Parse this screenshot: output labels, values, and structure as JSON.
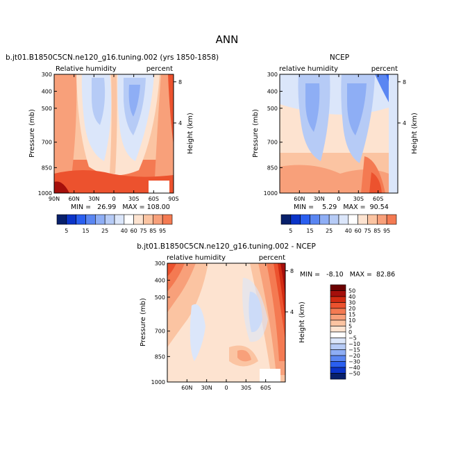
{
  "page": {
    "title": "ANN"
  },
  "colors": {
    "blues": [
      "#08206b",
      "#0b34c8",
      "#2a5ff0",
      "#5a86f2",
      "#8eaef5",
      "#b6cbf6",
      "#dbe6fa"
    ],
    "neutral": "#ffffff",
    "reds": [
      "#fde3d0",
      "#fbc4a2",
      "#f8a07a",
      "#f47a52",
      "#ec522e",
      "#d22b12",
      "#a50f0b",
      "#6b0000"
    ]
  },
  "chart_data": [
    {
      "id": "model",
      "type": "contour",
      "case_title": "b.jt01.B1850C5CN.ne120_g16.tuning.002 (yrs 1850-1858)",
      "variable_label": "Relative humidity",
      "units_label": "percent",
      "ylabel": "Pressure (mb)",
      "y2label": "Height (km)",
      "yticks": [
        "300",
        "400",
        "500",
        "700",
        "850",
        "1000"
      ],
      "yticks_values": [
        300,
        400,
        500,
        700,
        850,
        1000
      ],
      "y2ticks": [
        "8",
        "4"
      ],
      "y2ticks_values": [
        8,
        4
      ],
      "xticks": [
        "90N",
        "60N",
        "30N",
        "0",
        "30S",
        "60S",
        "90S"
      ],
      "xticks_values": [
        90,
        60,
        30,
        0,
        -30,
        -60,
        -90
      ],
      "xlim": [
        90,
        -90
      ],
      "ylim": [
        300,
        1000
      ],
      "stats": "MIN =   26.99   MAX = 108.00",
      "colorbar_levels": [
        "5",
        "15",
        "25",
        "40",
        "60",
        "75",
        "85",
        "95"
      ]
    },
    {
      "id": "obs",
      "type": "contour",
      "case_title": "NCEP",
      "variable_label": "relative humidity",
      "units_label": "percent",
      "ylabel": "Pressure (mb)",
      "y2label": "Height (km)",
      "yticks": [
        "300",
        "400",
        "500",
        "700",
        "850",
        "1000"
      ],
      "yticks_values": [
        300,
        400,
        500,
        700,
        850,
        1000
      ],
      "y2ticks": [
        "8",
        "4"
      ],
      "y2ticks_values": [
        8,
        4
      ],
      "xticks": [
        "60N",
        "30N",
        "0",
        "30S",
        "60S"
      ],
      "xticks_values": [
        60,
        30,
        0,
        -30,
        -60
      ],
      "xlim": [
        90,
        -90
      ],
      "ylim": [
        300,
        1000
      ],
      "stats": "MIN =    5.29   MAX =  90.54",
      "colorbar_levels": [
        "5",
        "15",
        "25",
        "40",
        "60",
        "75",
        "85",
        "95"
      ]
    },
    {
      "id": "diff",
      "type": "contour",
      "case_title": "b.jt01.B1850C5CN.ne120_g16.tuning.002 - NCEP",
      "variable_label": "relative humidity",
      "units_label": "percent",
      "ylabel": "Pressure (mb)",
      "y2label": "Height (km)",
      "yticks": [
        "300",
        "400",
        "500",
        "700",
        "850",
        "1000"
      ],
      "yticks_values": [
        300,
        400,
        500,
        700,
        850,
        1000
      ],
      "y2ticks": [
        "8",
        "4"
      ],
      "y2ticks_values": [
        8,
        4
      ],
      "xticks": [
        "60N",
        "30N",
        "0",
        "30S",
        "60S"
      ],
      "xticks_values": [
        60,
        30,
        0,
        -30,
        -60
      ],
      "xlim": [
        90,
        -90
      ],
      "ylim": [
        300,
        1000
      ],
      "stats": "MIN =   -8.10   MAX =  82.86",
      "colorbar_levels": [
        "50",
        "40",
        "30",
        "20",
        "15",
        "10",
        "5",
        "0",
        "−5",
        "−10",
        "−15",
        "−20",
        "−30",
        "−40",
        "−50"
      ]
    }
  ]
}
